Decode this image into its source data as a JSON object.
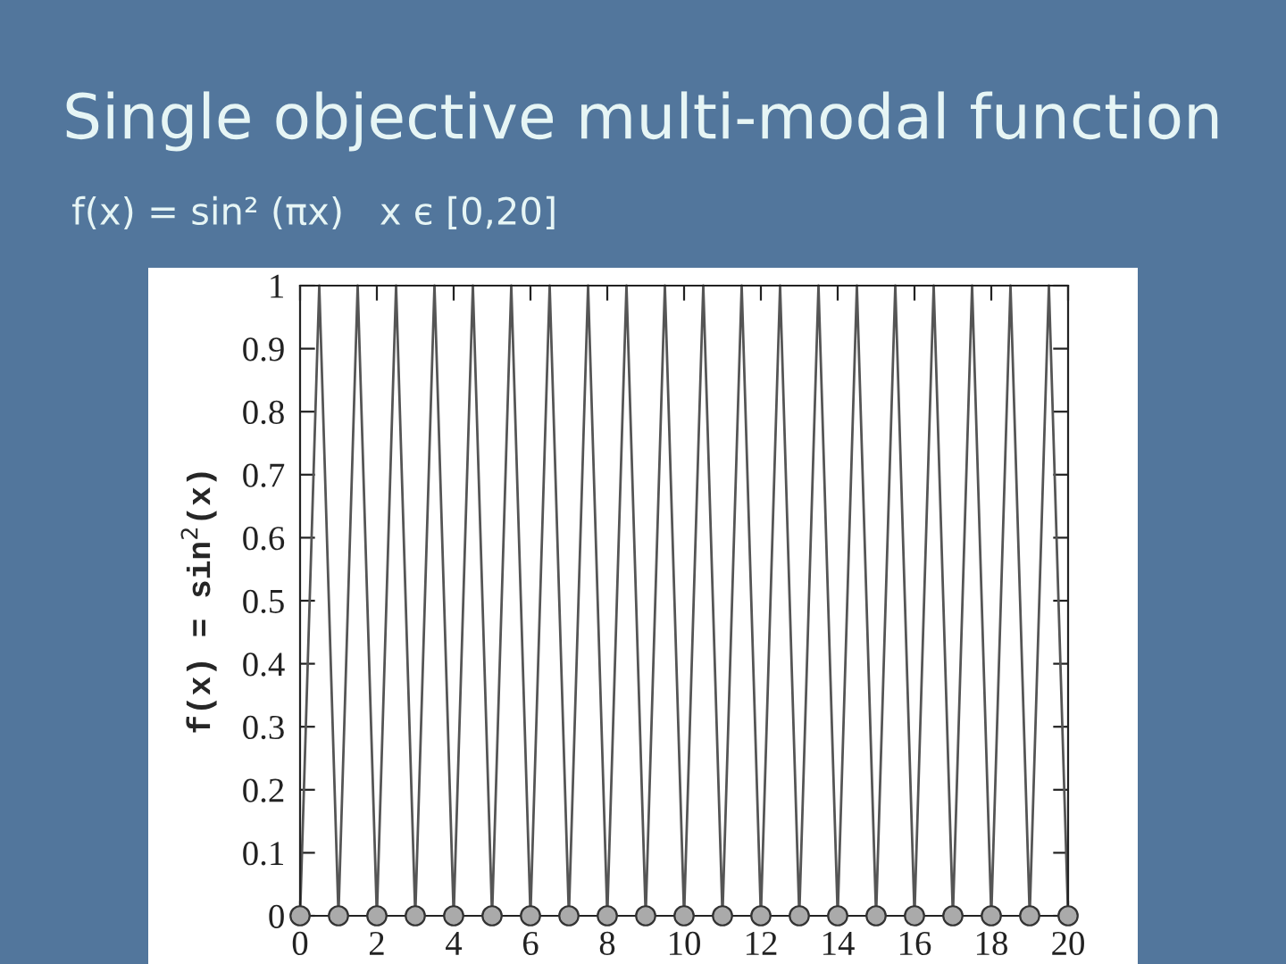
{
  "chart_data": {
    "type": "line",
    "title": "Single objective multi-modal function",
    "subtitle": "f(x) = sin² (πx)   x є [0,20]",
    "ylabel": "f(x) = sin$^{2}$(x)",
    "series": [
      {
        "color": "#555555",
        "marker": "none",
        "x": [
          0,
          0.25,
          0.5,
          0.75,
          1,
          1.25,
          1.5,
          1.75,
          2,
          2.25,
          2.5,
          2.75,
          3,
          3.25,
          3.5,
          3.75,
          4,
          4.25,
          4.5,
          4.75,
          5,
          5.25,
          5.5,
          5.75,
          6,
          6.25,
          6.5,
          6.75,
          7,
          7.25,
          7.5,
          7.75,
          8,
          8.25,
          8.5,
          8.75,
          9,
          9.25,
          9.5,
          9.75,
          10,
          10.25,
          10.5,
          10.75,
          11,
          11.25,
          11.5,
          11.75,
          12,
          12.25,
          12.5,
          12.75,
          13,
          13.25,
          13.5,
          13.75,
          14,
          14.25,
          14.5,
          14.75,
          15,
          15.25,
          15.5,
          15.75,
          16,
          16.25,
          16.5,
          16.75,
          17,
          17.25,
          17.5,
          17.75,
          18,
          18.25,
          18.5,
          18.75,
          19,
          19.25,
          19.5,
          19.75,
          20
        ],
        "values": [
          0,
          0.5,
          1,
          0.5,
          0,
          0.5,
          1,
          0.5,
          0,
          0.5,
          1,
          0.5,
          0,
          0.5,
          1,
          0.5,
          0,
          0.5,
          1,
          0.5,
          0,
          0.5,
          1,
          0.5,
          0,
          0.5,
          1,
          0.5,
          0,
          0.5,
          1,
          0.5,
          0,
          0.5,
          1,
          0.5,
          0,
          0.5,
          1,
          0.5,
          0,
          0.5,
          1,
          0.5,
          0,
          0.5,
          1,
          0.5,
          0,
          0.5,
          1,
          0.5,
          0,
          0.5,
          1,
          0.5,
          0,
          0.5,
          1,
          0.5,
          0,
          0.5,
          1,
          0.5,
          0,
          0.5,
          1,
          0.5,
          0,
          0.5,
          1,
          0.5,
          0,
          0.5,
          1,
          0.5,
          0,
          0.5,
          1,
          0.5,
          0
        ]
      },
      {
        "type": "scatter",
        "color": "#aaaaaa",
        "marker": "circle",
        "x": [
          0,
          1,
          2,
          3,
          4,
          5,
          6,
          7,
          8,
          9,
          10,
          11,
          12,
          13,
          14,
          15,
          16,
          17,
          18,
          19,
          20
        ],
        "values": [
          0,
          0,
          0,
          0,
          0,
          0,
          0,
          0,
          0,
          0,
          0,
          0,
          0,
          0,
          0,
          0,
          0,
          0,
          0,
          0,
          0
        ]
      }
    ],
    "xlim": [
      0,
      20
    ],
    "xticks": [
      0,
      2,
      4,
      6,
      8,
      10,
      12,
      14,
      16,
      18,
      20
    ],
    "ylim": [
      0,
      1
    ],
    "yticks": [
      0,
      0.1,
      0.2,
      0.3,
      0.4,
      0.5,
      0.6,
      0.7,
      0.8,
      0.9,
      1
    ],
    "grid": false,
    "legend": false
  }
}
